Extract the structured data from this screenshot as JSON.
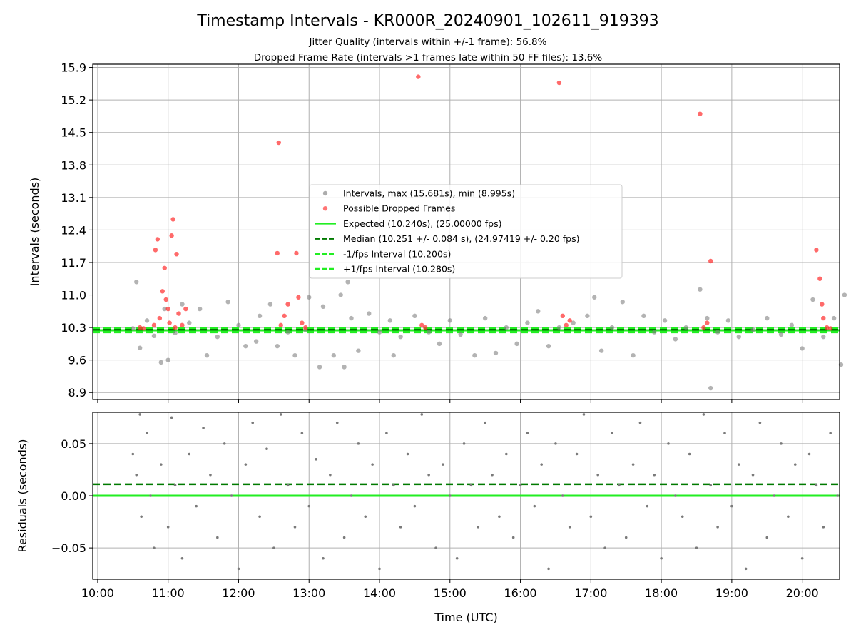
{
  "chart_data": [
    {
      "type": "scatter",
      "title": "Timestamp Intervals - KR000R_20240901_102611_919393",
      "subtitle_lines": [
        "Jitter Quality (intervals within +/-1 frame): 56.8%",
        "Dropped Frame Rate (intervals >1 frames late within 50 FF files): 13.6%"
      ],
      "ylabel": "Intervals (seconds)",
      "ylim": [
        8.75,
        15.97
      ],
      "y_ticks": [
        "8.9",
        "9.6",
        "10.3",
        "11.0",
        "11.7",
        "12.4",
        "13.1",
        "13.8",
        "14.5",
        "15.2",
        "15.9"
      ],
      "y_tick_values": [
        8.9,
        9.6,
        10.3,
        11.0,
        11.7,
        12.4,
        13.1,
        13.8,
        14.5,
        15.2,
        15.9
      ],
      "grid": true,
      "legend_position": "center",
      "legend": [
        {
          "label": "Intervals, max (15.681s), min (8.995s)",
          "kind": "marker",
          "color": "#808080"
        },
        {
          "label": "Possible Dropped Frames",
          "kind": "marker",
          "color": "#ff2b2b"
        },
        {
          "label": "Expected (10.240s), (25.00000 fps)",
          "kind": "solid",
          "color": "#22ee22"
        },
        {
          "label": "Median (10.251 +/- 0.084 s), (24.97419 +/- 0.20 fps)",
          "kind": "dashed",
          "color": "#007a00"
        },
        {
          "label": "-1/fps Interval (10.200s)",
          "kind": "dashed",
          "color": "#22ee22"
        },
        {
          "label": "+1/fps Interval (10.280s)",
          "kind": "dashed",
          "color": "#22ee22"
        }
      ],
      "expected_interval": 10.24,
      "median_interval": 10.251,
      "minus_interval": 10.2,
      "plus_interval": 10.28,
      "series": [
        {
          "name": "Intervals, max (15.681s), min (8.995s)",
          "color": "#808080",
          "points": [
            [
              10.5,
              10.28
            ],
            [
              10.55,
              11.28
            ],
            [
              10.6,
              9.86
            ],
            [
              10.7,
              10.45
            ],
            [
              10.8,
              10.12
            ],
            [
              10.9,
              9.55
            ],
            [
              10.95,
              10.7
            ],
            [
              11.0,
              9.6
            ],
            [
              11.1,
              10.18
            ],
            [
              11.2,
              10.8
            ],
            [
              11.3,
              10.4
            ],
            [
              11.45,
              10.7
            ],
            [
              11.55,
              9.7
            ],
            [
              11.7,
              10.1
            ],
            [
              11.85,
              10.85
            ],
            [
              12.0,
              10.35
            ],
            [
              12.1,
              9.9
            ],
            [
              12.3,
              10.55
            ],
            [
              12.45,
              10.8
            ],
            [
              12.55,
              9.9
            ],
            [
              12.7,
              10.2
            ],
            [
              12.8,
              9.7
            ],
            [
              12.95,
              10.25
            ],
            [
              13.0,
              10.95
            ],
            [
              13.15,
              9.45
            ],
            [
              13.2,
              10.75
            ],
            [
              13.35,
              9.7
            ],
            [
              13.45,
              11.0
            ],
            [
              13.5,
              9.45
            ],
            [
              13.55,
              11.28
            ],
            [
              13.6,
              10.5
            ],
            [
              13.7,
              9.8
            ],
            [
              13.85,
              10.6
            ],
            [
              14.0,
              10.2
            ],
            [
              14.15,
              10.45
            ],
            [
              14.3,
              10.1
            ],
            [
              14.5,
              10.55
            ],
            [
              14.7,
              10.2
            ],
            [
              14.85,
              9.95
            ],
            [
              15.0,
              10.45
            ],
            [
              15.15,
              10.15
            ],
            [
              15.35,
              9.7
            ],
            [
              15.5,
              10.5
            ],
            [
              15.65,
              9.75
            ],
            [
              15.8,
              10.3
            ],
            [
              15.95,
              9.95
            ],
            [
              16.1,
              10.4
            ],
            [
              16.25,
              10.65
            ],
            [
              16.4,
              9.9
            ],
            [
              16.55,
              10.3
            ],
            [
              16.75,
              10.4
            ],
            [
              16.95,
              10.55
            ],
            [
              17.05,
              10.95
            ],
            [
              17.15,
              9.8
            ],
            [
              17.3,
              10.3
            ],
            [
              17.45,
              10.85
            ],
            [
              17.6,
              9.7
            ],
            [
              17.75,
              10.55
            ],
            [
              17.9,
              10.2
            ],
            [
              18.05,
              10.45
            ],
            [
              18.2,
              10.05
            ],
            [
              18.35,
              10.3
            ],
            [
              18.55,
              11.12
            ],
            [
              18.65,
              10.5
            ],
            [
              18.7,
              8.995
            ],
            [
              18.8,
              10.2
            ],
            [
              18.95,
              10.45
            ],
            [
              19.1,
              10.1
            ],
            [
              19.3,
              10.25
            ],
            [
              19.5,
              10.5
            ],
            [
              19.7,
              10.15
            ],
            [
              19.85,
              10.35
            ],
            [
              20.0,
              9.85
            ],
            [
              20.15,
              10.9
            ],
            [
              20.3,
              10.1
            ],
            [
              20.45,
              10.5
            ],
            [
              20.55,
              9.5
            ],
            [
              20.6,
              11.0
            ],
            [
              14.2,
              9.7
            ],
            [
              12.25,
              10.0
            ]
          ]
        },
        {
          "name": "Possible Dropped Frames",
          "color": "#ff2b2b",
          "points": [
            [
              10.6,
              10.3
            ],
            [
              10.65,
              10.28
            ],
            [
              10.8,
              10.35
            ],
            [
              10.82,
              11.97
            ],
            [
              10.85,
              12.2
            ],
            [
              10.88,
              10.5
            ],
            [
              10.92,
              11.08
            ],
            [
              10.95,
              11.58
            ],
            [
              10.97,
              10.9
            ],
            [
              11.0,
              10.7
            ],
            [
              11.02,
              10.4
            ],
            [
              11.05,
              12.28
            ],
            [
              11.07,
              12.63
            ],
            [
              11.1,
              10.3
            ],
            [
              11.12,
              11.88
            ],
            [
              11.15,
              10.6
            ],
            [
              11.2,
              10.35
            ],
            [
              11.25,
              10.7
            ],
            [
              12.55,
              11.9
            ],
            [
              12.57,
              14.28
            ],
            [
              12.6,
              10.35
            ],
            [
              12.65,
              10.55
            ],
            [
              12.7,
              10.8
            ],
            [
              12.82,
              11.9
            ],
            [
              12.85,
              10.95
            ],
            [
              12.9,
              10.4
            ],
            [
              12.95,
              10.3
            ],
            [
              14.55,
              15.7
            ],
            [
              14.6,
              10.35
            ],
            [
              14.65,
              10.3
            ],
            [
              16.55,
              15.57
            ],
            [
              16.6,
              10.55
            ],
            [
              16.65,
              10.35
            ],
            [
              16.7,
              10.45
            ],
            [
              18.55,
              14.9
            ],
            [
              18.6,
              10.3
            ],
            [
              18.65,
              10.4
            ],
            [
              18.7,
              11.73
            ],
            [
              20.2,
              11.97
            ],
            [
              20.25,
              11.35
            ],
            [
              20.28,
              10.8
            ],
            [
              20.3,
              10.5
            ],
            [
              20.35,
              10.3
            ],
            [
              20.4,
              10.28
            ]
          ]
        }
      ]
    },
    {
      "type": "scatter",
      "ylabel": "Residuals (seconds)",
      "xlabel": "Time (UTC)",
      "ylim": [
        -0.08,
        0.08
      ],
      "y_ticks": [
        "−0.05",
        "0.00",
        "0.05"
      ],
      "y_tick_values": [
        -0.05,
        0.0,
        0.05
      ],
      "x_ticks": [
        "10:00",
        "11:00",
        "12:00",
        "13:00",
        "14:00",
        "15:00",
        "16:00",
        "17:00",
        "18:00",
        "19:00",
        "20:00"
      ],
      "x_tick_values": [
        10,
        11,
        12,
        13,
        14,
        15,
        16,
        17,
        18,
        19,
        20
      ],
      "xlim": [
        9.93,
        20.53
      ],
      "grid": true,
      "zero_line": 0.0,
      "median_residual": 0.011,
      "series": [
        {
          "name": "",
          "color": "#7a7a7a",
          "points": [
            [
              10.5,
              0.04
            ],
            [
              10.55,
              0.02
            ],
            [
              10.6,
              0.078
            ],
            [
              10.62,
              -0.02
            ],
            [
              10.7,
              0.06
            ],
            [
              10.75,
              0.0
            ],
            [
              10.8,
              -0.05
            ],
            [
              10.9,
              0.03
            ],
            [
              11.0,
              -0.03
            ],
            [
              11.05,
              0.075
            ],
            [
              11.1,
              0.01
            ],
            [
              11.2,
              -0.06
            ],
            [
              11.3,
              0.04
            ],
            [
              11.4,
              -0.01
            ],
            [
              11.5,
              0.065
            ],
            [
              11.6,
              0.02
            ],
            [
              11.7,
              -0.04
            ],
            [
              11.8,
              0.05
            ],
            [
              11.9,
              0.0
            ],
            [
              12.0,
              -0.07
            ],
            [
              12.1,
              0.03
            ],
            [
              12.2,
              0.07
            ],
            [
              12.3,
              -0.02
            ],
            [
              12.4,
              0.045
            ],
            [
              12.5,
              -0.05
            ],
            [
              12.6,
              0.078
            ],
            [
              12.7,
              0.01
            ],
            [
              12.8,
              -0.03
            ],
            [
              12.9,
              0.06
            ],
            [
              13.0,
              -0.01
            ],
            [
              13.1,
              0.035
            ],
            [
              13.2,
              -0.06
            ],
            [
              13.3,
              0.02
            ],
            [
              13.4,
              0.07
            ],
            [
              13.5,
              -0.04
            ],
            [
              13.6,
              0.0
            ],
            [
              13.7,
              0.05
            ],
            [
              13.8,
              -0.02
            ],
            [
              13.9,
              0.03
            ],
            [
              14.0,
              -0.07
            ],
            [
              14.1,
              0.06
            ],
            [
              14.2,
              0.01
            ],
            [
              14.3,
              -0.03
            ],
            [
              14.4,
              0.04
            ],
            [
              14.5,
              -0.01
            ],
            [
              14.6,
              0.078
            ],
            [
              14.7,
              0.02
            ],
            [
              14.8,
              -0.05
            ],
            [
              14.9,
              0.03
            ],
            [
              15.0,
              0.0
            ],
            [
              15.1,
              -0.06
            ],
            [
              15.2,
              0.05
            ],
            [
              15.3,
              0.01
            ],
            [
              15.4,
              -0.03
            ],
            [
              15.5,
              0.07
            ],
            [
              15.6,
              0.02
            ],
            [
              15.7,
              -0.02
            ],
            [
              15.8,
              0.04
            ],
            [
              15.9,
              -0.04
            ],
            [
              16.0,
              0.01
            ],
            [
              16.1,
              0.06
            ],
            [
              16.2,
              -0.01
            ],
            [
              16.3,
              0.03
            ],
            [
              16.4,
              -0.07
            ],
            [
              16.5,
              0.05
            ],
            [
              16.6,
              0.0
            ],
            [
              16.7,
              -0.03
            ],
            [
              16.8,
              0.04
            ],
            [
              16.9,
              0.078
            ],
            [
              17.0,
              -0.02
            ],
            [
              17.1,
              0.02
            ],
            [
              17.2,
              -0.05
            ],
            [
              17.3,
              0.06
            ],
            [
              17.4,
              0.01
            ],
            [
              17.5,
              -0.04
            ],
            [
              17.6,
              0.03
            ],
            [
              17.7,
              0.07
            ],
            [
              17.8,
              -0.01
            ],
            [
              17.9,
              0.02
            ],
            [
              18.0,
              -0.06
            ],
            [
              18.1,
              0.05
            ],
            [
              18.2,
              0.0
            ],
            [
              18.3,
              -0.02
            ],
            [
              18.4,
              0.04
            ],
            [
              18.5,
              -0.05
            ],
            [
              18.6,
              0.078
            ],
            [
              18.7,
              0.01
            ],
            [
              18.8,
              -0.03
            ],
            [
              18.9,
              0.06
            ],
            [
              19.0,
              -0.01
            ],
            [
              19.1,
              0.03
            ],
            [
              19.2,
              -0.07
            ],
            [
              19.3,
              0.02
            ],
            [
              19.4,
              0.07
            ],
            [
              19.5,
              -0.04
            ],
            [
              19.6,
              0.0
            ],
            [
              19.7,
              0.05
            ],
            [
              19.8,
              -0.02
            ],
            [
              19.9,
              0.03
            ],
            [
              20.0,
              -0.06
            ],
            [
              20.1,
              0.04
            ],
            [
              20.2,
              0.01
            ],
            [
              20.3,
              -0.03
            ],
            [
              20.4,
              0.06
            ],
            [
              20.5,
              0.0
            ]
          ]
        }
      ]
    }
  ],
  "colors": {
    "interval_points": "#808080",
    "dropped_points": "#ff2b2b",
    "expected_line": "#22ee22",
    "median_line": "#007a00",
    "residual_points": "#7a7a7a",
    "grid": "#b0b0b0"
  }
}
